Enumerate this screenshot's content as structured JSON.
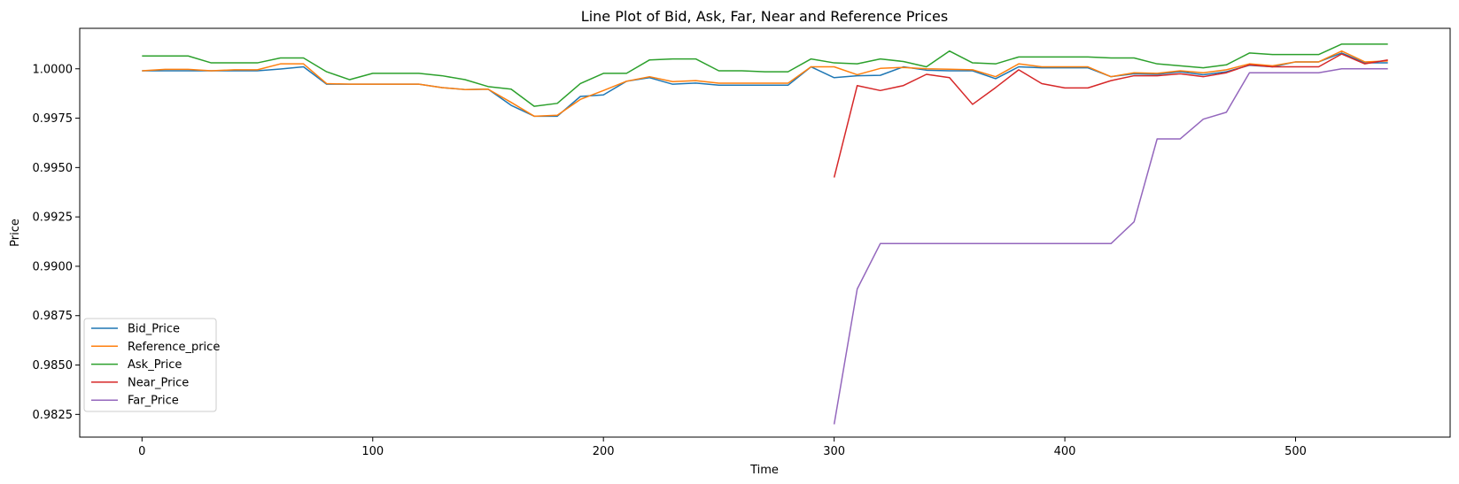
{
  "chart_data": {
    "type": "line",
    "title": "Line Plot of Bid, Ask, Far, Near and Reference Prices",
    "xlabel": "Time",
    "ylabel": "Price",
    "xlim": [
      -27,
      567
    ],
    "ylim": [
      0.98135,
      1.00205
    ],
    "x_ticks": [
      0,
      100,
      200,
      300,
      400,
      500
    ],
    "x_tick_labels": [
      "0",
      "100",
      "200",
      "300",
      "400",
      "500"
    ],
    "y_ticks": [
      0.9825,
      0.985,
      0.9875,
      0.99,
      0.9925,
      0.995,
      0.9975,
      1.0
    ],
    "y_tick_labels": [
      "0.9825",
      "0.9850",
      "0.9875",
      "0.9900",
      "0.9925",
      "0.9950",
      "0.9975",
      "1.0000"
    ],
    "grid": false,
    "legend_position": "lower left",
    "series": [
      {
        "name": "Bid_Price",
        "color": "#1f77b4",
        "x": [
          0,
          10,
          20,
          30,
          40,
          50,
          60,
          70,
          80,
          90,
          100,
          110,
          120,
          130,
          140,
          150,
          160,
          170,
          180,
          190,
          200,
          210,
          220,
          230,
          240,
          250,
          260,
          270,
          280,
          290,
          300,
          310,
          320,
          330,
          340,
          350,
          360,
          370,
          380,
          390,
          400,
          410,
          420,
          430,
          440,
          450,
          460,
          470,
          480,
          490,
          500,
          510,
          520,
          530,
          540
        ],
        "y": [
          0.9999,
          0.9999,
          0.9999,
          0.9999,
          0.9999,
          0.9999,
          0.99999,
          1.0001,
          0.99922,
          0.99922,
          0.99922,
          0.99922,
          0.99922,
          0.99905,
          0.99895,
          0.99897,
          0.99815,
          0.9976,
          0.9976,
          0.9986,
          0.99868,
          0.99937,
          0.99955,
          0.99922,
          0.99928,
          0.99917,
          0.99917,
          0.99917,
          0.99917,
          1.0001,
          0.99955,
          0.99965,
          0.99967,
          1.0001,
          0.99993,
          0.9999,
          0.9999,
          0.9995,
          1.0001,
          1.00005,
          1.00005,
          1.00005,
          0.9996,
          0.99975,
          0.99972,
          0.99985,
          0.9997,
          0.99985,
          1.00018,
          1.0001,
          1.00035,
          1.00035,
          1.0008,
          1.0003,
          1.0003
        ]
      },
      {
        "name": "Reference_price",
        "color": "#ff7f0e",
        "x": [
          0,
          10,
          20,
          30,
          40,
          50,
          60,
          70,
          80,
          90,
          100,
          110,
          120,
          130,
          140,
          150,
          160,
          170,
          180,
          190,
          200,
          210,
          220,
          230,
          240,
          250,
          260,
          270,
          280,
          290,
          300,
          310,
          320,
          330,
          340,
          350,
          360,
          370,
          380,
          390,
          400,
          410,
          420,
          430,
          440,
          450,
          460,
          470,
          480,
          490,
          500,
          510,
          520,
          530,
          540
        ],
        "y": [
          0.9999,
          0.99997,
          0.99997,
          0.9999,
          0.99995,
          0.99995,
          1.00025,
          1.00025,
          0.99925,
          0.99922,
          0.99922,
          0.99922,
          0.99922,
          0.99905,
          0.99895,
          0.99897,
          0.9983,
          0.9976,
          0.99765,
          0.99845,
          0.9989,
          0.99937,
          0.9996,
          0.99935,
          0.9994,
          0.99927,
          0.99927,
          0.99927,
          0.99927,
          1.0001,
          1.0001,
          0.9997,
          1.00002,
          1.00007,
          1.0,
          0.99998,
          0.99995,
          0.9996,
          1.00025,
          1.0001,
          1.0001,
          1.0001,
          0.9996,
          0.9998,
          0.99977,
          0.9999,
          0.9998,
          0.99995,
          1.00025,
          1.00015,
          1.00035,
          1.00035,
          1.0009,
          1.00035,
          1.0004
        ]
      },
      {
        "name": "Ask_Price",
        "color": "#2ca02c",
        "x": [
          0,
          10,
          20,
          30,
          40,
          50,
          60,
          70,
          80,
          90,
          100,
          110,
          120,
          130,
          140,
          150,
          160,
          170,
          180,
          190,
          200,
          210,
          220,
          230,
          240,
          250,
          260,
          270,
          280,
          290,
          300,
          310,
          320,
          330,
          340,
          350,
          360,
          370,
          380,
          390,
          400,
          410,
          420,
          430,
          440,
          450,
          460,
          470,
          480,
          490,
          500,
          510,
          520,
          530,
          540
        ],
        "y": [
          1.00065,
          1.00065,
          1.00065,
          1.0003,
          1.0003,
          1.0003,
          1.00055,
          1.00055,
          0.99985,
          0.99945,
          0.99977,
          0.99977,
          0.99977,
          0.99965,
          0.99945,
          0.9991,
          0.99897,
          0.9981,
          0.99825,
          0.99925,
          0.99977,
          0.99977,
          1.00045,
          1.0005,
          1.0005,
          0.9999,
          0.9999,
          0.99985,
          0.99985,
          1.0005,
          1.0003,
          1.00025,
          1.0005,
          1.00037,
          1.0001,
          1.0009,
          1.0003,
          1.00025,
          1.0006,
          1.0006,
          1.0006,
          1.0006,
          1.00055,
          1.00055,
          1.00025,
          1.00015,
          1.00005,
          1.0002,
          1.0008,
          1.00072,
          1.00072,
          1.00072,
          1.00125,
          1.00125,
          1.00125
        ]
      },
      {
        "name": "Near_Price",
        "color": "#d62728",
        "x": [
          300,
          310,
          320,
          330,
          340,
          350,
          360,
          370,
          380,
          390,
          400,
          410,
          420,
          430,
          440,
          450,
          460,
          470,
          480,
          490,
          500,
          510,
          520,
          530,
          540
        ],
        "y": [
          0.9945,
          0.99915,
          0.9989,
          0.99915,
          0.99972,
          0.99955,
          0.9982,
          0.99905,
          0.99995,
          0.99925,
          0.99903,
          0.99903,
          0.9994,
          0.99965,
          0.99965,
          0.99975,
          0.9996,
          0.9998,
          1.0002,
          1.0001,
          1.0001,
          1.0001,
          1.00075,
          1.00025,
          1.00045
        ]
      },
      {
        "name": "Far_Price",
        "color": "#9467bd",
        "x": [
          300,
          310,
          320,
          330,
          340,
          350,
          360,
          370,
          380,
          390,
          400,
          410,
          420,
          430,
          440,
          450,
          460,
          470,
          480,
          490,
          500,
          510,
          520,
          530,
          540
        ],
        "y": [
          0.982,
          0.98885,
          0.99115,
          0.99115,
          0.99115,
          0.99115,
          0.99115,
          0.99115,
          0.99115,
          0.99115,
          0.99115,
          0.99115,
          0.99115,
          0.99225,
          0.99645,
          0.99645,
          0.99745,
          0.9978,
          0.9998,
          0.9998,
          0.9998,
          0.9998,
          1.0,
          1.0,
          1.0
        ]
      }
    ]
  }
}
